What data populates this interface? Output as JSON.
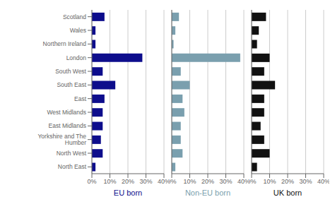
{
  "chart_data": [
    {
      "type": "bar",
      "orientation": "horizontal",
      "xlabel": "EU born",
      "color": "#0d0d8c",
      "categories": [
        "Scotland",
        "Wales",
        "Northern Ireland",
        "London",
        "South West",
        "South East",
        "East",
        "West Midlands",
        "East Midlands",
        "Yorkshire and The Humber",
        "North West",
        "North East"
      ],
      "values": [
        7,
        2,
        2,
        28,
        6,
        13,
        7,
        6,
        6,
        5,
        6,
        2
      ],
      "xlim": [
        0,
        40
      ],
      "xticks": [
        {
          "value": 0,
          "label": "0%"
        },
        {
          "value": 10,
          "label": "10%"
        },
        {
          "value": 20,
          "label": "20%"
        },
        {
          "value": 30,
          "label": "30%"
        },
        {
          "value": 40,
          "label": "40%"
        }
      ],
      "grid": true
    },
    {
      "type": "bar",
      "orientation": "horizontal",
      "xlabel": "Non-EU born",
      "color": "#7a9fae",
      "categories": [
        "Scotland",
        "Wales",
        "Northern Ireland",
        "London",
        "South West",
        "South East",
        "East",
        "West Midlands",
        "East Midlands",
        "Yorkshire and The Humber",
        "North West",
        "North East"
      ],
      "values": [
        4,
        2,
        1,
        38,
        5,
        10,
        6,
        7,
        5,
        5,
        6,
        2
      ],
      "xlim": [
        0,
        40
      ],
      "xticks": [
        {
          "value": 0,
          "label": "0%"
        },
        {
          "value": 10,
          "label": "10%"
        },
        {
          "value": 20,
          "label": "20%"
        },
        {
          "value": 30,
          "label": "30%"
        },
        {
          "value": 40,
          "label": "40%"
        }
      ],
      "grid": true,
      "tick_labels": "x"
    },
    {
      "type": "bar",
      "orientation": "horizontal",
      "xlabel": "UK born",
      "color": "#111111",
      "categories": [
        "Scotland",
        "Wales",
        "Northern Ireland",
        "London",
        "South West",
        "South East",
        "East",
        "West Midlands",
        "East Midlands",
        "Yorkshire and The Humber",
        "North West",
        "North East"
      ],
      "values": [
        8,
        4,
        3,
        10,
        7,
        13,
        7,
        7,
        5,
        7,
        10,
        3
      ],
      "xlim": [
        0,
        40
      ],
      "xticks": [
        {
          "value": 0,
          "label": "0%"
        },
        {
          "value": 10,
          "label": "10%"
        },
        {
          "value": 20,
          "label": "20%"
        },
        {
          "value": 30,
          "label": "30%"
        },
        {
          "value": 40,
          "label": "40%"
        }
      ],
      "grid": true,
      "tick_labels": "x"
    }
  ]
}
